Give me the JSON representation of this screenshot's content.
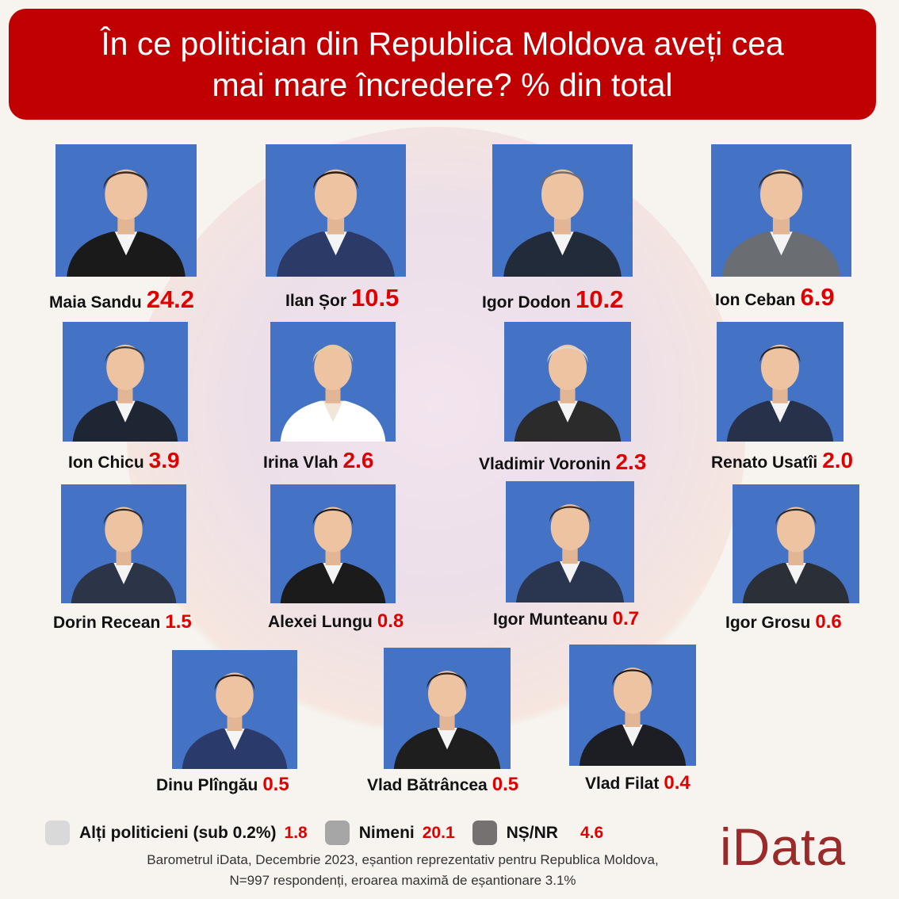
{
  "title": "În ce politician din Republica Moldova aveți cea mai mare încredere? % din total",
  "chart_data": {
    "type": "bar",
    "title": "În ce politician din Republica Moldova aveți cea mai mare încredere? % din total",
    "categories": [
      "Maia Sandu",
      "Ilan Șor",
      "Igor Dodon",
      "Ion Ceban",
      "Ion Chicu",
      "Irina Vlah",
      "Vladimir Voronin",
      "Renato Usatîi",
      "Dorin Recean",
      "Alexei Lungu",
      "Igor Munteanu",
      "Igor Grosu",
      "Dinu Plîngău",
      "Vlad Bătrâncea",
      "Vlad Filat"
    ],
    "values": [
      "24.2",
      "10.5",
      "10.2",
      "6.9",
      "3.9",
      "2.6",
      "2.3",
      "2.0",
      "1.5",
      "0.8",
      "0.7",
      "0.6",
      "0.5",
      "0.5",
      "0.4"
    ],
    "other": [
      {
        "label": "Alți politicieni (sub 0.2%)",
        "value": "1.8",
        "color": "#d9d9d9"
      },
      {
        "label": "Nimeni",
        "value": "20.1",
        "color": "#a6a6a6"
      },
      {
        "label": "NȘ/NR",
        "value": "4.6",
        "color": "#767171"
      }
    ]
  },
  "colors": {
    "title_bg": "#c00000",
    "photo_bg": "#4472c4",
    "value": "#e00000",
    "logo": "#9b2a2a"
  },
  "source_line1": "Barometrul iData, Decembrie 2023, eșantion reprezentativ pentru Republica Moldova,",
  "source_line2": "N=997 respondenți, eroarea maximă de eșantionare 3.1%",
  "logo": "iData"
}
